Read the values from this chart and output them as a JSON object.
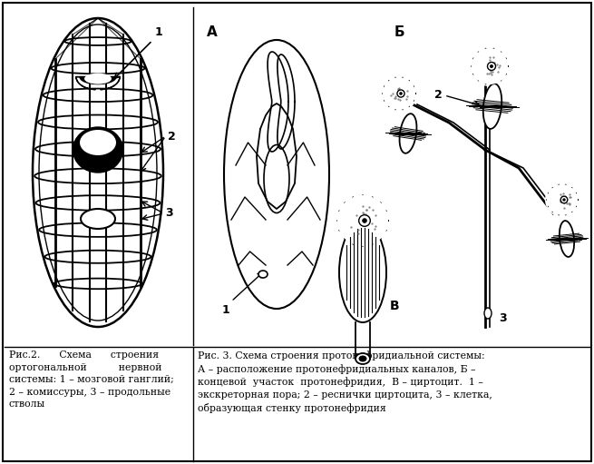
{
  "bg_color": "#ffffff",
  "caption_left": "Рис.2.      Схема      строения\nортогональной          нервной\nсистемы: 1 – мозговой ганглий;\n2 – комиссуры, 3 – продольные\nстволы",
  "caption_right": "Рис. 3. Схема строения протонефридиальной системы:\nА – расположение протонефридиальных каналов, Б –\nконцевой  участок  протонефридия,  В – циртоцит.  1 –\nэкскреторная пора; 2 – реснички циртоцита, 3 – клетка,\nобразующая стенку протонефридия",
  "label_A": "А",
  "label_B": "Б",
  "label_V": "В"
}
